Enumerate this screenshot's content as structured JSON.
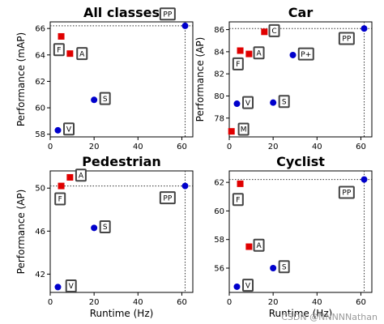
{
  "watermark": "CSDN @NNNNNathan",
  "chart_data": [
    {
      "type": "scatter",
      "title": "All classes",
      "xlabel": "",
      "ylabel": "Performance (mAP)",
      "xlim": [
        0,
        65
      ],
      "ylim": [
        57.8,
        66.5
      ],
      "xticks": [
        0,
        20,
        40,
        60
      ],
      "yticks": [
        58,
        60,
        62,
        64,
        66
      ],
      "ref_x": 61.5,
      "ref_y": 66.2,
      "points": [
        {
          "label": "PP",
          "x": 61.5,
          "y": 66.2,
          "color": "#0000cc",
          "marker": "circle",
          "tag_dx": -8,
          "tag_dy": 0.9
        },
        {
          "label": "F",
          "x": 5.0,
          "y": 65.4,
          "color": "#e00000",
          "marker": "square",
          "tag_dx": -1.0,
          "tag_dy": -1.0
        },
        {
          "label": "A",
          "x": 9.0,
          "y": 64.1,
          "color": "#e00000",
          "marker": "square",
          "tag_dx": 5.5,
          "tag_dy": 0.0
        },
        {
          "label": "S",
          "x": 20.0,
          "y": 60.6,
          "color": "#0000cc",
          "marker": "circle",
          "tag_dx": 5.0,
          "tag_dy": 0.1
        },
        {
          "label": "V",
          "x": 3.5,
          "y": 58.3,
          "color": "#0000cc",
          "marker": "circle",
          "tag_dx": 5.0,
          "tag_dy": 0.1
        }
      ]
    },
    {
      "type": "scatter",
      "title": "Car",
      "xlabel": "",
      "ylabel": "Performance (AP)",
      "xlim": [
        0,
        65
      ],
      "ylim": [
        76.3,
        86.7
      ],
      "xticks": [
        0,
        20,
        40,
        60
      ],
      "yticks": [
        78,
        80,
        82,
        84,
        86
      ],
      "ref_x": 61.5,
      "ref_y": 86.1,
      "points": [
        {
          "label": "PP",
          "x": 61.5,
          "y": 86.1,
          "color": "#0000cc",
          "marker": "circle",
          "tag_dx": -8,
          "tag_dy": -0.9
        },
        {
          "label": "C",
          "x": 16.0,
          "y": 85.8,
          "color": "#e00000",
          "marker": "square",
          "tag_dx": 4.5,
          "tag_dy": 0.1
        },
        {
          "label": "F",
          "x": 5.0,
          "y": 84.1,
          "color": "#e00000",
          "marker": "square",
          "tag_dx": -1.0,
          "tag_dy": -1.2
        },
        {
          "label": "A",
          "x": 9.0,
          "y": 83.8,
          "color": "#e00000",
          "marker": "square",
          "tag_dx": 4.5,
          "tag_dy": 0.1
        },
        {
          "label": "P+",
          "x": 29.0,
          "y": 83.7,
          "color": "#0000cc",
          "marker": "circle",
          "tag_dx": 6.0,
          "tag_dy": 0.1
        },
        {
          "label": "S",
          "x": 20.0,
          "y": 79.4,
          "color": "#0000cc",
          "marker": "circle",
          "tag_dx": 5.0,
          "tag_dy": 0.1
        },
        {
          "label": "V",
          "x": 3.5,
          "y": 79.3,
          "color": "#0000cc",
          "marker": "circle",
          "tag_dx": 5.0,
          "tag_dy": 0.1
        },
        {
          "label": "M",
          "x": 1.0,
          "y": 76.8,
          "color": "#e00000",
          "marker": "square",
          "tag_dx": 5.5,
          "tag_dy": 0.2
        }
      ]
    },
    {
      "type": "scatter",
      "title": "Pedestrian",
      "xlabel": "Runtime (Hz)",
      "ylabel": "Performance (AP)",
      "xlim": [
        0,
        65
      ],
      "ylim": [
        40.3,
        51.6
      ],
      "xticks": [
        0,
        20,
        40,
        60
      ],
      "yticks": [
        42,
        46,
        50
      ],
      "ref_x": 61.5,
      "ref_y": 50.2,
      "points": [
        {
          "label": "PP",
          "x": 61.5,
          "y": 50.2,
          "color": "#0000cc",
          "marker": "circle",
          "tag_dx": -8,
          "tag_dy": -1.1
        },
        {
          "label": "A",
          "x": 9.0,
          "y": 51.0,
          "color": "#e00000",
          "marker": "square",
          "tag_dx": 5.0,
          "tag_dy": 0.2
        },
        {
          "label": "F",
          "x": 5.0,
          "y": 50.2,
          "color": "#e00000",
          "marker": "square",
          "tag_dx": -0.5,
          "tag_dy": -1.2
        },
        {
          "label": "S",
          "x": 20.0,
          "y": 46.3,
          "color": "#0000cc",
          "marker": "circle",
          "tag_dx": 5.0,
          "tag_dy": 0.1
        },
        {
          "label": "V",
          "x": 3.5,
          "y": 40.8,
          "color": "#0000cc",
          "marker": "circle",
          "tag_dx": 6.0,
          "tag_dy": 0.1
        }
      ]
    },
    {
      "type": "scatter",
      "title": "Cyclist",
      "xlabel": "Runtime (Hz)",
      "ylabel": "",
      "xlim": [
        0,
        65
      ],
      "ylim": [
        54.3,
        62.8
      ],
      "xticks": [
        0,
        20,
        40,
        60
      ],
      "yticks": [
        56,
        58,
        60,
        62
      ],
      "ref_x": 61.5,
      "ref_y": 62.2,
      "points": [
        {
          "label": "PP",
          "x": 61.5,
          "y": 62.2,
          "color": "#0000cc",
          "marker": "circle",
          "tag_dx": -8,
          "tag_dy": -0.9
        },
        {
          "label": "F",
          "x": 5.0,
          "y": 61.9,
          "color": "#e00000",
          "marker": "square",
          "tag_dx": -1.0,
          "tag_dy": -1.1
        },
        {
          "label": "A",
          "x": 9.0,
          "y": 57.5,
          "color": "#e00000",
          "marker": "square",
          "tag_dx": 4.5,
          "tag_dy": 0.1
        },
        {
          "label": "S",
          "x": 20.0,
          "y": 56.0,
          "color": "#0000cc",
          "marker": "circle",
          "tag_dx": 5.0,
          "tag_dy": 0.1
        },
        {
          "label": "V",
          "x": 3.5,
          "y": 54.7,
          "color": "#0000cc",
          "marker": "circle",
          "tag_dx": 5.0,
          "tag_dy": 0.1
        }
      ]
    }
  ]
}
